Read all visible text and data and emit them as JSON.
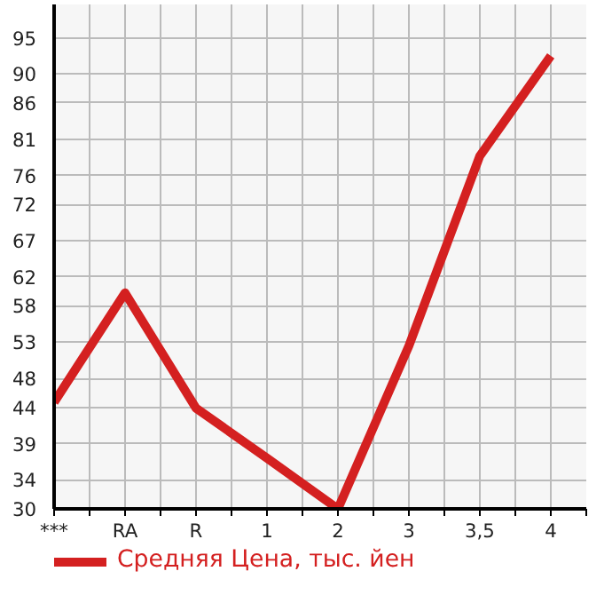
{
  "chart_data": {
    "type": "line",
    "categories": [
      "***",
      "RA",
      "R",
      "1",
      "2",
      "3",
      "3,5",
      "4"
    ],
    "series": [
      {
        "name": "Средняя Цена, тыс. йен",
        "color": "#d42020",
        "values": [
          44.7,
          59.8,
          43.9,
          37,
          30,
          52.5,
          78.7,
          92.5
        ]
      }
    ],
    "ylim": [
      30,
      99.6
    ],
    "yticks": [
      30,
      34,
      39,
      44,
      48,
      53,
      58,
      62,
      67,
      72,
      76,
      81,
      86,
      90,
      95
    ],
    "grid": true,
    "legend": "bottom",
    "marker": "none",
    "line_style": "solid"
  }
}
